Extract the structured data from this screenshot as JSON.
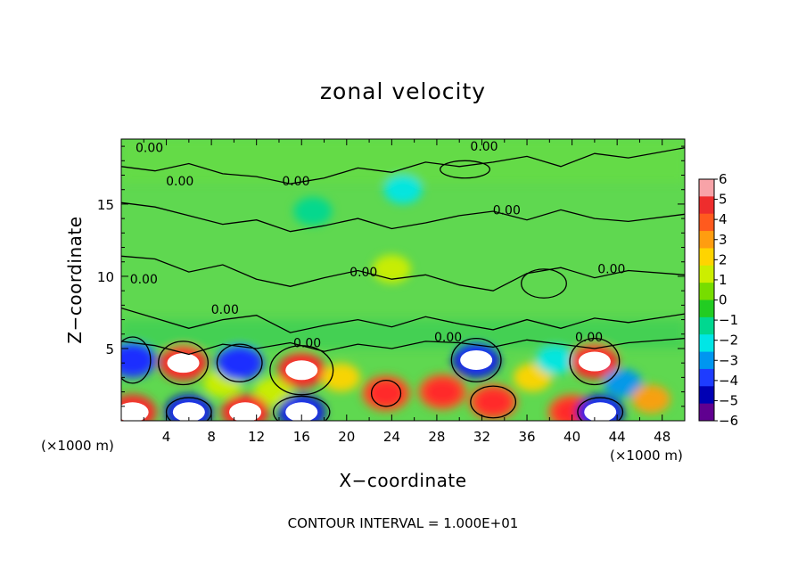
{
  "chart_data": {
    "type": "heatmap",
    "title": "zonal velocity",
    "xlabel": "X−coordinate",
    "ylabel": "Z−coordinate",
    "x_unit": "(×1000 m)",
    "footnote": "CONTOUR INTERVAL = 1.000E+01",
    "xlim": [
      0,
      50
    ],
    "ylim": [
      0,
      19.5
    ],
    "x_ticks": [
      "4",
      "8",
      "12",
      "16",
      "20",
      "24",
      "28",
      "32",
      "36",
      "40",
      "44",
      "48"
    ],
    "y_ticks": [
      "5",
      "10",
      "15"
    ],
    "colorbar": {
      "range": [
        -6,
        6
      ],
      "ticks": [
        "6",
        "5",
        "4",
        "3",
        "2",
        "1",
        "0",
        "−1",
        "−2",
        "−3",
        "−4",
        "−5",
        "−6"
      ],
      "colors": [
        "#f8a3a8",
        "#ee2d2d",
        "#ff5a1e",
        "#ff9d10",
        "#ffd400",
        "#ccee00",
        "#77dd00",
        "#22cc22",
        "#00d890",
        "#00e6e6",
        "#0096f0",
        "#1e3cff",
        "#0000b4",
        "#600090"
      ]
    },
    "contour_label": "0.00",
    "contour_interval": "1.000E+01",
    "cells": [
      {
        "x": 1,
        "z": 4.2,
        "value": -4
      },
      {
        "x": 5.5,
        "z": 4.0,
        "value": 5
      },
      {
        "x": 9,
        "z": 2.6,
        "value": 1
      },
      {
        "x": 10.5,
        "z": 4.0,
        "value": -4
      },
      {
        "x": 13.5,
        "z": 2.0,
        "value": 1
      },
      {
        "x": 16,
        "z": 3.5,
        "value": 5
      },
      {
        "x": 19.5,
        "z": 3.0,
        "value": 2
      },
      {
        "x": 23.5,
        "z": 1.9,
        "value": 4
      },
      {
        "x": 28.5,
        "z": 2.0,
        "value": 4
      },
      {
        "x": 31.5,
        "z": 4.2,
        "value": -5
      },
      {
        "x": 33,
        "z": 1.3,
        "value": 4
      },
      {
        "x": 36.5,
        "z": 3.0,
        "value": 2
      },
      {
        "x": 38.5,
        "z": 4.2,
        "value": -2
      },
      {
        "x": 42,
        "z": 4.1,
        "value": 5
      },
      {
        "x": 44.5,
        "z": 2.6,
        "value": -3
      },
      {
        "x": 47,
        "z": 1.5,
        "value": 3
      },
      {
        "x": 1,
        "z": 0.6,
        "value": 5
      },
      {
        "x": 6,
        "z": 0.6,
        "value": -5
      },
      {
        "x": 11,
        "z": 0.6,
        "value": 5
      },
      {
        "x": 16,
        "z": 0.6,
        "value": -5
      },
      {
        "x": 40,
        "z": 0.6,
        "value": 4
      },
      {
        "x": 42.5,
        "z": 0.6,
        "value": -5
      },
      {
        "x": 25,
        "z": 16,
        "value": -2
      },
      {
        "x": 17,
        "z": 14.5,
        "value": -1.5
      },
      {
        "x": 24,
        "z": 10.5,
        "value": 1.5
      }
    ]
  }
}
